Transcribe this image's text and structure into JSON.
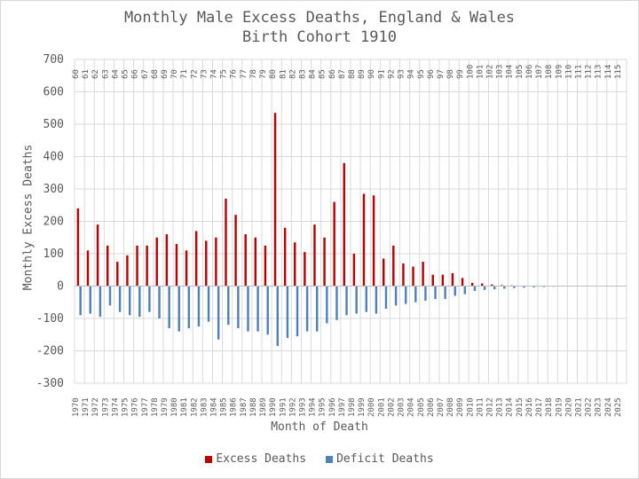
{
  "title_line1": "Monthly Male Excess Deaths, England & Wales",
  "title_line2": "Birth Cohort 1910",
  "colors": {
    "excess": "#c00000",
    "deficit": "#4f81bd",
    "grid": "#d9d9d9",
    "text": "#595959"
  },
  "chart_data": {
    "type": "bar",
    "ylabel": "Monthly Excess Deaths",
    "xlabel": "Month of Death",
    "ylim": [
      -300,
      700
    ],
    "yticks": [
      -300,
      -200,
      -100,
      0,
      100,
      200,
      300,
      400,
      500,
      600,
      700
    ],
    "grid": true,
    "legend_position": "bottom",
    "x_years": [
      "1970",
      "1971",
      "1972",
      "1973",
      "1974",
      "1975",
      "1976",
      "1977",
      "1978",
      "1979",
      "1980",
      "1981",
      "1982",
      "1983",
      "1984",
      "1985",
      "1986",
      "1987",
      "1988",
      "1989",
      "1990",
      "1991",
      "1992",
      "1993",
      "1994",
      "1995",
      "1996",
      "1997",
      "1998",
      "1999",
      "2000",
      "2001",
      "2002",
      "2003",
      "2004",
      "2005",
      "2006",
      "2007",
      "2008",
      "2009",
      "2010",
      "2011",
      "2012",
      "2013",
      "2014",
      "2015",
      "2016",
      "2017",
      "2018",
      "2019",
      "2020",
      "2021",
      "2022",
      "2023",
      "2024",
      "2025"
    ],
    "age_labels": [
      "60",
      "61",
      "62",
      "63",
      "64",
      "65",
      "66",
      "67",
      "68",
      "69",
      "70",
      "71",
      "72",
      "73",
      "74",
      "75",
      "76",
      "77",
      "78",
      "79",
      "80",
      "81",
      "82",
      "83",
      "84",
      "85",
      "86",
      "87",
      "88",
      "89",
      "90",
      "91",
      "92",
      "93",
      "94",
      "95",
      "96",
      "97",
      "98",
      "99",
      "100",
      "101",
      "102",
      "103",
      "104",
      "105",
      "106",
      "107",
      "108",
      "109",
      "110",
      "111",
      "112",
      "113",
      "114",
      "115"
    ],
    "series": [
      {
        "name": "Excess Deaths",
        "color": "#c00000",
        "values": [
          240,
          110,
          190,
          125,
          75,
          95,
          125,
          125,
          150,
          160,
          130,
          110,
          170,
          140,
          150,
          270,
          220,
          160,
          150,
          125,
          535,
          180,
          135,
          105,
          190,
          150,
          260,
          380,
          100,
          285,
          280,
          85,
          125,
          70,
          60,
          75,
          35,
          35,
          40,
          25,
          10,
          8,
          5,
          3,
          2,
          1,
          0,
          0,
          0,
          0,
          0,
          0,
          0,
          0,
          0,
          0
        ]
      },
      {
        "name": "Deficit Deaths",
        "color": "#4f81bd",
        "values": [
          -90,
          -85,
          -95,
          -60,
          -80,
          -90,
          -95,
          -80,
          -100,
          -130,
          -140,
          -130,
          -125,
          -110,
          -165,
          -120,
          -130,
          -140,
          -140,
          -150,
          -185,
          -160,
          -155,
          -140,
          -140,
          -115,
          -105,
          -90,
          -85,
          -80,
          -85,
          -70,
          -60,
          -55,
          -50,
          -45,
          -40,
          -40,
          -30,
          -25,
          -15,
          -12,
          -10,
          -8,
          -6,
          -5,
          -4,
          -3,
          -2,
          -1,
          0,
          0,
          0,
          0,
          0,
          0
        ]
      }
    ]
  }
}
